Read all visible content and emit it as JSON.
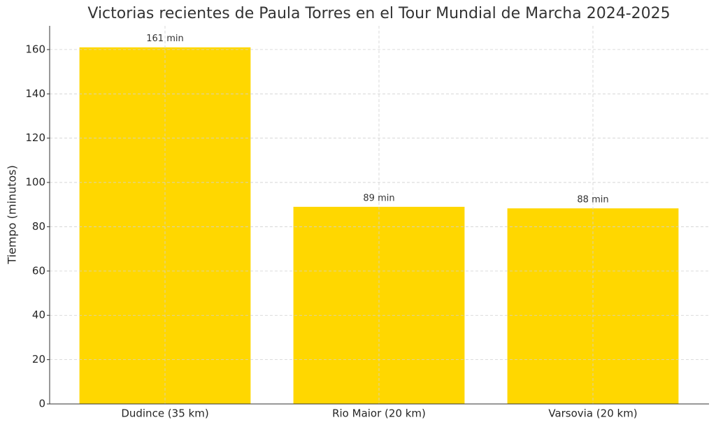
{
  "chart_data": {
    "type": "bar",
    "title": "Victorias recientes de Paula Torres en el Tour Mundial de Marcha 2024-2025",
    "y_label": "Tiempo (minutos)",
    "categories": [
      "Dudince (35 km)",
      "Rio Maior (20 km)",
      "Varsovia (20 km)"
    ],
    "values": [
      161,
      89,
      88.3
    ],
    "value_labels": [
      "161 min",
      "89 min",
      "88 min"
    ],
    "color": "#ffd700",
    "ylim": [
      0,
      170.7
    ],
    "yticks": [
      0,
      20,
      40,
      60,
      80,
      100,
      120,
      140,
      160
    ],
    "grid": true
  }
}
